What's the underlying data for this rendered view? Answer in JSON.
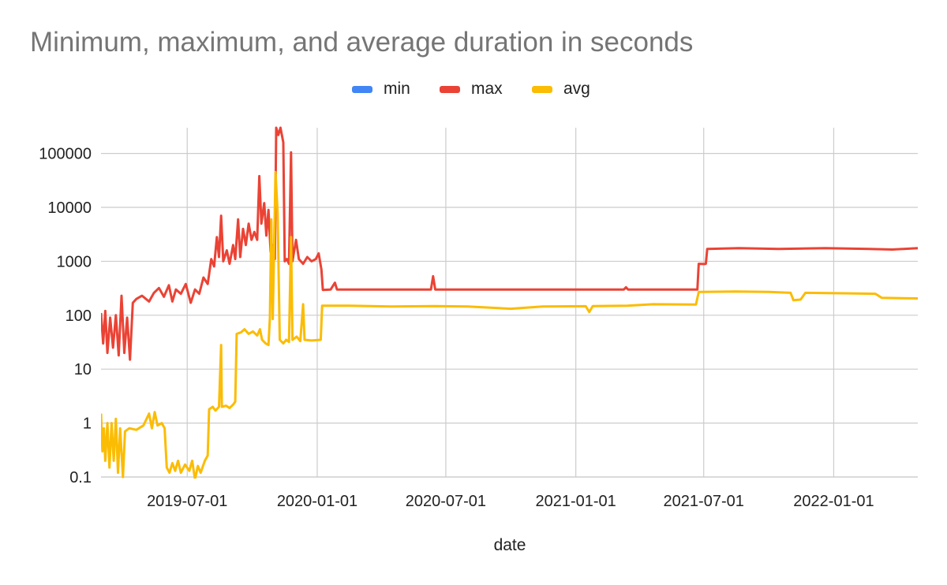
{
  "chart_data": {
    "type": "line",
    "title": "Minimum, maximum, and average duration in seconds",
    "xlabel": "date",
    "ylabel": "",
    "yscale": "log",
    "ylim": [
      0.1,
      300000
    ],
    "xlim": [
      "2019-03-01",
      "2022-04-30"
    ],
    "legend_position": "top-center",
    "grid": true,
    "x_ticks": [
      "2019-07-01",
      "2020-01-01",
      "2020-07-01",
      "2021-01-01",
      "2021-07-01",
      "2022-01-01"
    ],
    "y_ticks": [
      {
        "value": 0.1,
        "label": "0.1"
      },
      {
        "value": 1,
        "label": "1"
      },
      {
        "value": 10,
        "label": "10"
      },
      {
        "value": 100,
        "label": "100"
      },
      {
        "value": 1000,
        "label": "1000"
      },
      {
        "value": 10000,
        "label": "10000"
      },
      {
        "value": 100000,
        "label": "100000"
      }
    ],
    "series": [
      {
        "name": "min",
        "color": "#4285F4",
        "points": []
      },
      {
        "name": "max",
        "color": "#EA4335",
        "points": [
          [
            "2019-03-01",
            110
          ],
          [
            "2019-03-04",
            30
          ],
          [
            "2019-03-07",
            120
          ],
          [
            "2019-03-10",
            20
          ],
          [
            "2019-03-14",
            90
          ],
          [
            "2019-03-18",
            25
          ],
          [
            "2019-03-22",
            100
          ],
          [
            "2019-03-26",
            18
          ],
          [
            "2019-03-30",
            230
          ],
          [
            "2019-04-03",
            20
          ],
          [
            "2019-04-07",
            90
          ],
          [
            "2019-04-11",
            15
          ],
          [
            "2019-04-15",
            170
          ],
          [
            "2019-04-20",
            200
          ],
          [
            "2019-04-28",
            230
          ],
          [
            "2019-05-08",
            180
          ],
          [
            "2019-05-15",
            260
          ],
          [
            "2019-05-22",
            320
          ],
          [
            "2019-05-29",
            220
          ],
          [
            "2019-06-05",
            360
          ],
          [
            "2019-06-10",
            180
          ],
          [
            "2019-06-15",
            300
          ],
          [
            "2019-06-22",
            250
          ],
          [
            "2019-06-29",
            380
          ],
          [
            "2019-07-06",
            170
          ],
          [
            "2019-07-12",
            300
          ],
          [
            "2019-07-18",
            250
          ],
          [
            "2019-07-24",
            500
          ],
          [
            "2019-07-30",
            380
          ],
          [
            "2019-08-04",
            1100
          ],
          [
            "2019-08-08",
            800
          ],
          [
            "2019-08-12",
            2800
          ],
          [
            "2019-08-15",
            1200
          ],
          [
            "2019-08-18",
            7000
          ],
          [
            "2019-08-21",
            1000
          ],
          [
            "2019-08-26",
            1600
          ],
          [
            "2019-08-30",
            900
          ],
          [
            "2019-09-04",
            2000
          ],
          [
            "2019-09-07",
            1100
          ],
          [
            "2019-09-11",
            6000
          ],
          [
            "2019-09-14",
            1200
          ],
          [
            "2019-09-18",
            4000
          ],
          [
            "2019-09-22",
            2000
          ],
          [
            "2019-09-26",
            5000
          ],
          [
            "2019-09-30",
            2500
          ],
          [
            "2019-10-04",
            3500
          ],
          [
            "2019-10-08",
            2500
          ],
          [
            "2019-10-11",
            38000
          ],
          [
            "2019-10-14",
            5000
          ],
          [
            "2019-10-18",
            12000
          ],
          [
            "2019-10-21",
            3000
          ],
          [
            "2019-10-24",
            9000
          ],
          [
            "2019-10-27",
            1500
          ],
          [
            "2019-10-30",
            2000
          ],
          [
            "2019-11-02",
            1100
          ],
          [
            "2019-11-04",
            300000
          ],
          [
            "2019-11-07",
            220000
          ],
          [
            "2019-11-10",
            300000
          ],
          [
            "2019-11-14",
            160000
          ],
          [
            "2019-11-16",
            1000
          ],
          [
            "2019-11-19",
            1100
          ],
          [
            "2019-11-22",
            900
          ],
          [
            "2019-11-25",
            105000
          ],
          [
            "2019-11-27",
            1000
          ],
          [
            "2019-12-02",
            2500
          ],
          [
            "2019-12-06",
            1100
          ],
          [
            "2019-12-12",
            900
          ],
          [
            "2019-12-18",
            1200
          ],
          [
            "2019-12-24",
            1000
          ],
          [
            "2019-12-30",
            1100
          ],
          [
            "2020-01-03",
            1400
          ],
          [
            "2020-01-07",
            700
          ],
          [
            "2020-01-09",
            295
          ],
          [
            "2020-01-20",
            300
          ],
          [
            "2020-01-26",
            400
          ],
          [
            "2020-01-29",
            300
          ],
          [
            "2020-06-10",
            300
          ],
          [
            "2020-06-13",
            530
          ],
          [
            "2020-06-16",
            300
          ],
          [
            "2021-03-10",
            300
          ],
          [
            "2021-03-13",
            330
          ],
          [
            "2021-03-16",
            300
          ],
          [
            "2021-06-22",
            300
          ],
          [
            "2021-06-24",
            900
          ],
          [
            "2021-07-02",
            890
          ],
          [
            "2021-07-04",
            900
          ],
          [
            "2021-07-06",
            1700
          ],
          [
            "2021-08-20",
            1750
          ],
          [
            "2021-10-15",
            1700
          ],
          [
            "2021-12-20",
            1750
          ],
          [
            "2022-02-20",
            1700
          ],
          [
            "2022-03-25",
            1650
          ],
          [
            "2022-04-30",
            1750
          ]
        ]
      },
      {
        "name": "avg",
        "color": "#FBBC04",
        "points": [
          [
            "2019-03-01",
            1.5
          ],
          [
            "2019-03-03",
            0.3
          ],
          [
            "2019-03-05",
            0.8
          ],
          [
            "2019-03-07",
            0.2
          ],
          [
            "2019-03-10",
            1.0
          ],
          [
            "2019-03-13",
            0.15
          ],
          [
            "2019-03-16",
            1.0
          ],
          [
            "2019-03-19",
            0.2
          ],
          [
            "2019-03-22",
            1.2
          ],
          [
            "2019-03-25",
            0.12
          ],
          [
            "2019-03-28",
            0.8
          ],
          [
            "2019-04-01",
            0.1
          ],
          [
            "2019-04-04",
            0.7
          ],
          [
            "2019-04-10",
            0.8
          ],
          [
            "2019-04-20",
            0.75
          ],
          [
            "2019-04-30",
            0.9
          ],
          [
            "2019-05-08",
            1.5
          ],
          [
            "2019-05-12",
            0.8
          ],
          [
            "2019-05-16",
            1.6
          ],
          [
            "2019-05-20",
            0.9
          ],
          [
            "2019-05-26",
            1.0
          ],
          [
            "2019-05-30",
            0.8
          ],
          [
            "2019-06-02",
            0.15
          ],
          [
            "2019-06-06",
            0.12
          ],
          [
            "2019-06-10",
            0.18
          ],
          [
            "2019-06-14",
            0.13
          ],
          [
            "2019-06-18",
            0.2
          ],
          [
            "2019-06-22",
            0.12
          ],
          [
            "2019-06-28",
            0.17
          ],
          [
            "2019-07-04",
            0.13
          ],
          [
            "2019-07-08",
            0.2
          ],
          [
            "2019-07-12",
            0.09
          ],
          [
            "2019-07-16",
            0.16
          ],
          [
            "2019-07-20",
            0.12
          ],
          [
            "2019-07-26",
            0.2
          ],
          [
            "2019-07-30",
            0.25
          ],
          [
            "2019-08-01",
            1.8
          ],
          [
            "2019-08-06",
            2.0
          ],
          [
            "2019-08-10",
            1.7
          ],
          [
            "2019-08-15",
            2.0
          ],
          [
            "2019-08-18",
            28
          ],
          [
            "2019-08-19",
            2.0
          ],
          [
            "2019-08-25",
            2.1
          ],
          [
            "2019-08-30",
            1.9
          ],
          [
            "2019-09-04",
            2.2
          ],
          [
            "2019-09-07",
            2.5
          ],
          [
            "2019-09-09",
            45
          ],
          [
            "2019-09-15",
            48
          ],
          [
            "2019-09-20",
            55
          ],
          [
            "2019-09-26",
            45
          ],
          [
            "2019-10-02",
            50
          ],
          [
            "2019-10-08",
            42
          ],
          [
            "2019-10-12",
            55
          ],
          [
            "2019-10-15",
            35
          ],
          [
            "2019-10-20",
            30
          ],
          [
            "2019-10-24",
            28
          ],
          [
            "2019-10-26",
            90
          ],
          [
            "2019-10-28",
            6000
          ],
          [
            "2019-10-30",
            85
          ],
          [
            "2019-11-01",
            2000
          ],
          [
            "2019-11-03",
            45000
          ],
          [
            "2019-11-06",
            8000
          ],
          [
            "2019-11-09",
            35
          ],
          [
            "2019-11-14",
            30
          ],
          [
            "2019-11-18",
            35
          ],
          [
            "2019-11-22",
            32
          ],
          [
            "2019-11-25",
            2800
          ],
          [
            "2019-11-27",
            35
          ],
          [
            "2019-12-03",
            40
          ],
          [
            "2019-12-08",
            33
          ],
          [
            "2019-12-12",
            160
          ],
          [
            "2019-12-14",
            35
          ],
          [
            "2019-12-24",
            34
          ],
          [
            "2020-01-06",
            35
          ],
          [
            "2020-01-08",
            150
          ],
          [
            "2020-02-15",
            150
          ],
          [
            "2020-04-15",
            145
          ],
          [
            "2020-06-15",
            148
          ],
          [
            "2020-08-01",
            145
          ],
          [
            "2020-10-01",
            132
          ],
          [
            "2020-11-15",
            145
          ],
          [
            "2021-01-15",
            147
          ],
          [
            "2021-01-20",
            115
          ],
          [
            "2021-01-25",
            148
          ],
          [
            "2021-03-15",
            150
          ],
          [
            "2021-04-20",
            160
          ],
          [
            "2021-06-20",
            158
          ],
          [
            "2021-06-24",
            270
          ],
          [
            "2021-08-15",
            275
          ],
          [
            "2021-10-01",
            270
          ],
          [
            "2021-11-01",
            260
          ],
          [
            "2021-11-05",
            190
          ],
          [
            "2021-11-15",
            195
          ],
          [
            "2021-11-22",
            260
          ],
          [
            "2022-01-15",
            255
          ],
          [
            "2022-03-01",
            250
          ],
          [
            "2022-03-10",
            210
          ],
          [
            "2022-04-30",
            205
          ]
        ]
      }
    ]
  }
}
